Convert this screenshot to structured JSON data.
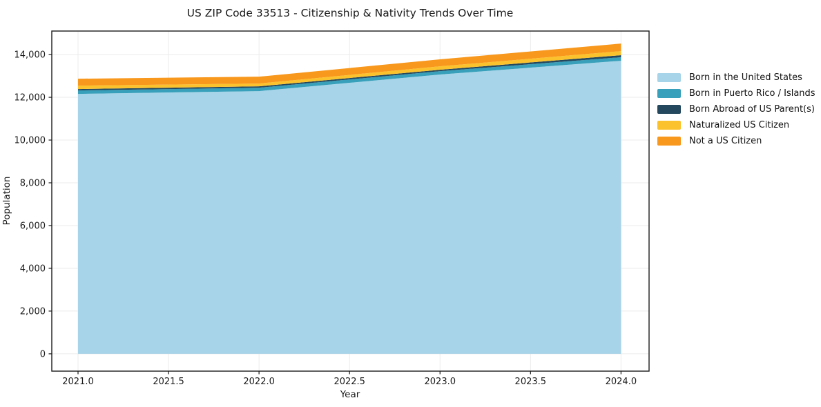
{
  "figure": {
    "background": "#ffffff",
    "spine_color": "#1a1a1a",
    "grid_color": "#ebebeb",
    "text_color": "#1a1a1a"
  },
  "chart_data": {
    "type": "area",
    "stacked": true,
    "title": "US ZIP Code 33513 - Citizenship & Nativity Trends Over Time",
    "xlabel": "Year",
    "ylabel": "Population",
    "x": [
      2021,
      2022,
      2023,
      2024
    ],
    "series": [
      {
        "name": "Born in the United States",
        "color": "#A7D4E8",
        "values": [
          12160,
          12290,
          13065,
          13710
        ]
      },
      {
        "name": "Born in Puerto Rico / Islands",
        "color": "#38A0BA",
        "values": [
          160,
          160,
          160,
          165
        ]
      },
      {
        "name": "Born Abroad of US Parent(s)",
        "color": "#24485E",
        "values": [
          65,
          65,
          65,
          95
        ]
      },
      {
        "name": "Naturalized US Citizen",
        "color": "#FCC22D",
        "values": [
          160,
          130,
          160,
          190
        ]
      },
      {
        "name": "Not a US Citizen",
        "color": "#F8981D",
        "values": [
          325,
          320,
          325,
          355
        ]
      }
    ],
    "totals": [
      12870,
      12965,
      13775,
      14515
    ],
    "x_ticks": [
      2021.0,
      2021.5,
      2022.0,
      2022.5,
      2023.0,
      2023.5,
      2024.0
    ],
    "x_tick_labels": [
      "2021.0",
      "2021.5",
      "2022.0",
      "2022.5",
      "2023.0",
      "2023.5",
      "2024.0"
    ],
    "y_ticks": [
      0,
      2000,
      4000,
      6000,
      8000,
      10000,
      12000,
      14000
    ],
    "y_tick_labels": [
      "0",
      "2,000",
      "4,000",
      "6,000",
      "8,000",
      "10,000",
      "12,000",
      "14,000"
    ],
    "xlim": [
      2020.855,
      2024.155
    ],
    "ylim": [
      -810,
      15100
    ],
    "grid": true,
    "legend_position": "right-of-plot"
  }
}
